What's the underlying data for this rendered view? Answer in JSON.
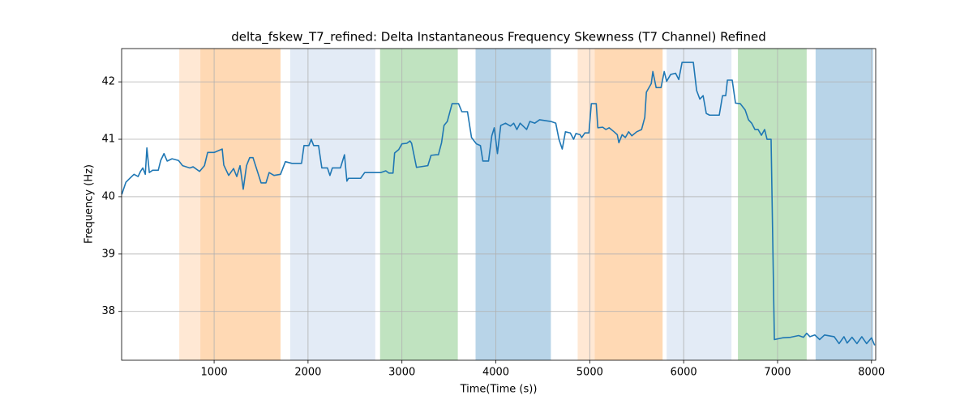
{
  "chart_data": {
    "type": "line",
    "title": "delta_fskew_T7_refined: Delta Instantaneous Frequency Skewness (T7 Channel) Refined",
    "x_label": "Time(Time (s))",
    "y_label": "Frequency (Hz)",
    "color": "#1f77b4",
    "grid": true,
    "xlim": [
      15,
      8045
    ],
    "ylim": [
      37.15,
      42.58
    ],
    "xticks": [
      1000,
      2000,
      3000,
      4000,
      5000,
      6000,
      7000,
      8000
    ],
    "yticks": [
      38,
      39,
      40,
      41,
      42
    ],
    "spans": [
      {
        "start": 629,
        "end": 853,
        "color": "#ffe8d4"
      },
      {
        "start": 853,
        "end": 1707,
        "color": "#ffd9b4"
      },
      {
        "start": 1810,
        "end": 2716,
        "color": "#e3ebf6"
      },
      {
        "start": 2767,
        "end": 3595,
        "color": "#c0e3c0"
      },
      {
        "start": 3784,
        "end": 4586,
        "color": "#b8d4e8"
      },
      {
        "start": 4871,
        "end": 5052,
        "color": "#ffe8d4"
      },
      {
        "start": 5052,
        "end": 5776,
        "color": "#ffd9b4"
      },
      {
        "start": 5819,
        "end": 6509,
        "color": "#e3ebf6"
      },
      {
        "start": 6578,
        "end": 7310,
        "color": "#c0e3c0"
      },
      {
        "start": 7405,
        "end": 8017,
        "color": "#b8d4e8"
      }
    ],
    "x": [
      17,
      60,
      103,
      147,
      190,
      216,
      241,
      267,
      284,
      310,
      345,
      405,
      431,
      466,
      500,
      552,
      621,
      664,
      741,
      776,
      845,
      897,
      931,
      1000,
      1086,
      1103,
      1155,
      1207,
      1241,
      1276,
      1310,
      1345,
      1379,
      1414,
      1457,
      1500,
      1552,
      1586,
      1638,
      1707,
      1759,
      1828,
      1931,
      1957,
      2009,
      2034,
      2060,
      2112,
      2147,
      2207,
      2233,
      2259,
      2345,
      2388,
      2414,
      2431,
      2560,
      2603,
      2655,
      2776,
      2828,
      2862,
      2905,
      2922,
      2966,
      3000,
      3052,
      3086,
      3103,
      3155,
      3276,
      3310,
      3362,
      3388,
      3422,
      3448,
      3483,
      3534,
      3603,
      3638,
      3698,
      3741,
      3793,
      3836,
      3862,
      3922,
      3957,
      3983,
      4017,
      4052,
      4103,
      4155,
      4190,
      4224,
      4259,
      4328,
      4362,
      4414,
      4466,
      4586,
      4638,
      4672,
      4707,
      4741,
      4793,
      4828,
      4853,
      4897,
      4914,
      4948,
      4991,
      5017,
      5069,
      5086,
      5138,
      5172,
      5207,
      5259,
      5293,
      5310,
      5345,
      5379,
      5414,
      5448,
      5500,
      5552,
      5586,
      5603,
      5655,
      5672,
      5707,
      5759,
      5793,
      5819,
      5862,
      5914,
      5948,
      5983,
      6103,
      6138,
      6172,
      6207,
      6241,
      6276,
      6379,
      6414,
      6448,
      6466,
      6517,
      6552,
      6603,
      6655,
      6690,
      6724,
      6759,
      6793,
      6828,
      6862,
      6888,
      6931,
      6966,
      7052,
      7138,
      7224,
      7276,
      7310,
      7345,
      7397,
      7448,
      7500,
      7603,
      7655,
      7707,
      7741,
      7793,
      7845,
      7897,
      7948,
      8000,
      8034
    ],
    "values": [
      40.04,
      40.25,
      40.32,
      40.39,
      40.35,
      40.44,
      40.5,
      40.39,
      40.85,
      40.42,
      40.46,
      40.46,
      40.63,
      40.75,
      40.62,
      40.66,
      40.63,
      40.54,
      40.5,
      40.52,
      40.44,
      40.54,
      40.77,
      40.77,
      40.83,
      40.55,
      40.37,
      40.49,
      40.35,
      40.54,
      40.13,
      40.54,
      40.68,
      40.68,
      40.46,
      40.24,
      40.24,
      40.42,
      40.37,
      40.39,
      40.61,
      40.58,
      40.58,
      40.89,
      40.89,
      41.0,
      40.89,
      40.89,
      40.5,
      40.5,
      40.37,
      40.5,
      40.5,
      40.73,
      40.27,
      40.32,
      40.32,
      40.42,
      40.42,
      40.42,
      40.45,
      40.41,
      40.41,
      40.76,
      40.82,
      40.92,
      40.93,
      40.97,
      40.93,
      40.51,
      40.54,
      40.72,
      40.73,
      40.73,
      40.94,
      41.24,
      41.31,
      41.62,
      41.62,
      41.48,
      41.48,
      41.03,
      40.92,
      40.89,
      40.62,
      40.62,
      41.06,
      41.2,
      40.75,
      41.24,
      41.28,
      41.23,
      41.28,
      41.17,
      41.28,
      41.17,
      41.31,
      41.28,
      41.34,
      41.31,
      41.28,
      41.0,
      40.83,
      41.13,
      41.11,
      41.0,
      41.1,
      41.08,
      41.03,
      41.11,
      41.11,
      41.62,
      41.62,
      41.2,
      41.21,
      41.17,
      41.2,
      41.13,
      41.08,
      40.94,
      41.08,
      41.03,
      41.13,
      41.06,
      41.13,
      41.17,
      41.38,
      41.82,
      41.97,
      42.18,
      41.9,
      41.9,
      42.18,
      42.01,
      42.13,
      42.15,
      42.04,
      42.34,
      42.34,
      41.85,
      41.7,
      41.76,
      41.45,
      41.42,
      41.42,
      41.76,
      41.76,
      42.03,
      42.03,
      41.63,
      41.62,
      41.51,
      41.34,
      41.28,
      41.17,
      41.17,
      41.07,
      41.17,
      41.0,
      41.0,
      37.51,
      37.54,
      37.55,
      37.58,
      37.55,
      37.62,
      37.56,
      37.59,
      37.51,
      37.59,
      37.56,
      37.44,
      37.56,
      37.45,
      37.55,
      37.44,
      37.56,
      37.44,
      37.54,
      37.41
    ]
  }
}
